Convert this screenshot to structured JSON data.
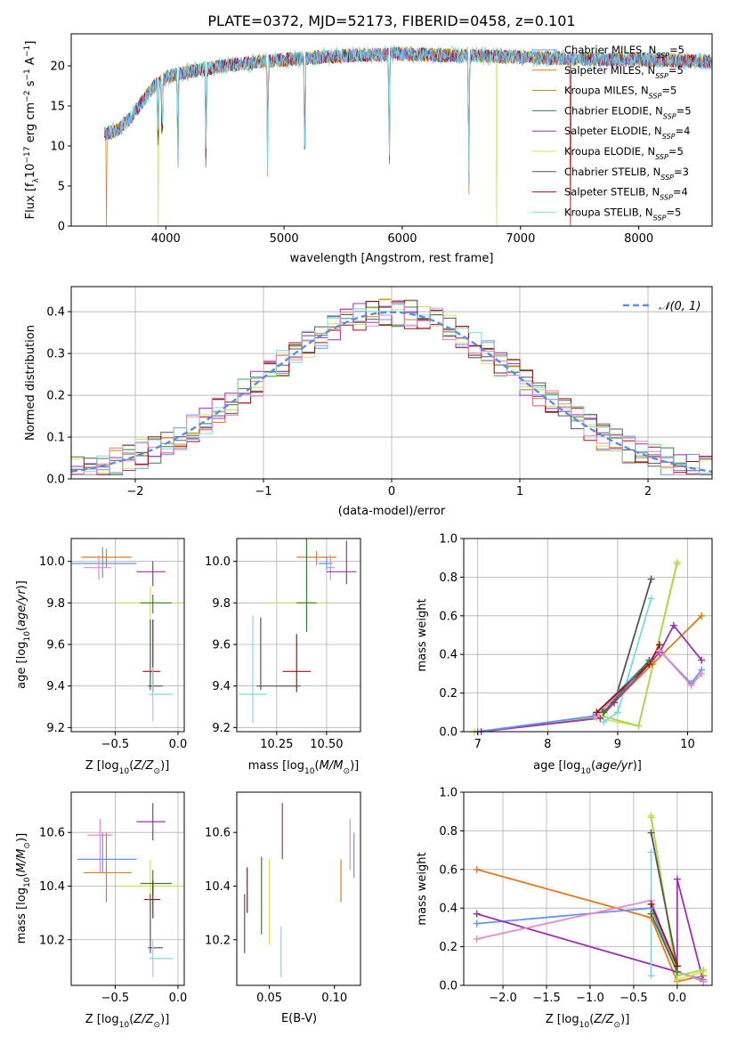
{
  "figure_title": "PLATE=0372, MJD=52173, FIBERID=0458, z=0.101",
  "colors": {
    "Chabrier MILES": "#6495ed",
    "Salpeter MILES": "#e07b1a",
    "Kroupa MILES": "#b8860b",
    "Chabrier ELODIE": "#3a7d3a",
    "Salpeter ELODIE": "#9b30b0",
    "Kroupa ELODIE": "#d4e157",
    "Chabrier STELIB": "#555555",
    "Salpeter STELIB": "#a01010",
    "Kroupa STELIB": "#7fd8e0",
    "pink": "#e88ac8",
    "lime": "#a8d850"
  },
  "chart_data": [
    {
      "type": "line",
      "name": "spectrum",
      "xlabel": "wavelength [Angstrom, rest frame]",
      "ylabel": "Flux [f_λ 10^-17 erg cm^-2 s^-1 A^-1]",
      "xlim": [
        3200,
        8620
      ],
      "ylim": [
        0,
        24
      ],
      "xticks": [
        4000,
        5000,
        6000,
        7000,
        8000
      ],
      "yticks": [
        0,
        5,
        10,
        15,
        20
      ],
      "legend_position": "right",
      "legend": [
        {
          "label": "Chabrier MILES, N_SSP=5",
          "color_key": "Chabrier MILES"
        },
        {
          "label": "Salpeter MILES, N_SSP=5",
          "color_key": "Salpeter MILES"
        },
        {
          "label": "Kroupa MILES, N_SSP=5",
          "color_key": "Kroupa MILES"
        },
        {
          "label": "Chabrier ELODIE, N_SSP=5",
          "color_key": "Chabrier ELODIE"
        },
        {
          "label": "Salpeter ELODIE, N_SSP=4",
          "color_key": "Salpeter ELODIE"
        },
        {
          "label": "Kroupa ELODIE, N_SSP=5",
          "color_key": "Kroupa ELODIE"
        },
        {
          "label": "Chabrier STELIB, N_SSP=3",
          "color_key": "Chabrier STELIB"
        },
        {
          "label": "Salpeter STELIB, N_SSP=4",
          "color_key": "Salpeter STELIB"
        },
        {
          "label": "Kroupa STELIB, N_SSP=5",
          "color_key": "Kroupa STELIB"
        }
      ],
      "continuum": [
        [
          3480,
          11.5
        ],
        [
          3600,
          12.0
        ],
        [
          3700,
          13.5
        ],
        [
          3800,
          15.5
        ],
        [
          3900,
          17.5
        ],
        [
          4000,
          18.5
        ],
        [
          4100,
          19.0
        ],
        [
          4300,
          19.5
        ],
        [
          4500,
          20.0
        ],
        [
          4800,
          20.5
        ],
        [
          5200,
          21.0
        ],
        [
          5600,
          21.3
        ],
        [
          6000,
          21.5
        ],
        [
          6400,
          21.3
        ],
        [
          6800,
          21.2
        ],
        [
          7200,
          21.0
        ],
        [
          7600,
          20.8
        ],
        [
          8000,
          20.8
        ],
        [
          8400,
          20.6
        ],
        [
          8620,
          20.5
        ]
      ],
      "absorption_lines": [
        [
          3934,
          12
        ],
        [
          3969,
          11
        ],
        [
          4102,
          15
        ],
        [
          4340,
          16
        ],
        [
          4861,
          17
        ],
        [
          5175,
          19
        ],
        [
          5890,
          19.5
        ],
        [
          6563,
          20
        ]
      ],
      "drops_to_zero": [
        [
          3500,
          "Salpeter MILES"
        ],
        [
          3935,
          "Kroupa ELODIE"
        ],
        [
          5070,
          "Chabrier STELIB"
        ],
        [
          6800,
          "Kroupa ELODIE"
        ],
        [
          7420,
          "Salpeter STELIB"
        ]
      ]
    },
    {
      "type": "line",
      "name": "residual_histograms",
      "xlabel": "(data-model)/error",
      "ylabel": "Normed distribution",
      "xlim": [
        -2.5,
        2.5
      ],
      "ylim": [
        0,
        0.46
      ],
      "xticks": [
        -2,
        -1,
        0,
        1,
        2
      ],
      "yticks": [
        0.0,
        0.1,
        0.2,
        0.3,
        0.4
      ],
      "grid": true,
      "legend_position": "top-right",
      "legend_label": "𝒩(0, 1)",
      "bin_width": 0.1,
      "histogram_series": [
        "Chabrier MILES",
        "Salpeter MILES",
        "Chabrier ELODIE",
        "Salpeter ELODIE",
        "Kroupa ELODIE",
        "Chabrier STELIB",
        "Salpeter STELIB",
        "Kroupa STELIB",
        "pink"
      ]
    },
    {
      "type": "scatter",
      "name": "age_vs_Z",
      "xlabel": "Z [log10(Z/Z☉)]",
      "ylabel": "age  [log10(age/yr)]",
      "xlim": [
        -0.85,
        0.05
      ],
      "ylim": [
        9.18,
        10.11
      ],
      "xticks": [
        -0.5,
        0.0
      ],
      "yticks": [
        9.2,
        9.4,
        9.6,
        9.8,
        10.0
      ],
      "grid": true,
      "points": [
        {
          "c": "Chabrier MILES",
          "x": -0.6,
          "y": 9.99,
          "xe": [
            0.27,
            0.27
          ],
          "ye": [
            0.07,
            0.08
          ]
        },
        {
          "c": "Salpeter MILES",
          "x": -0.57,
          "y": 10.02,
          "xe": [
            0.2,
            0.2
          ],
          "ye": [
            0.05,
            0.04
          ]
        },
        {
          "c": "pink",
          "x": -0.63,
          "y": 9.97,
          "xe": [
            0.12,
            0.1
          ],
          "ye": [
            0.06,
            0.06
          ]
        },
        {
          "c": "Salpeter ELODIE",
          "x": -0.2,
          "y": 9.95,
          "xe": [
            0.13,
            0.1
          ],
          "ye": [
            0.07,
            0.05
          ]
        },
        {
          "c": "Kroupa ELODIE",
          "x": -0.22,
          "y": 9.8,
          "xe": [
            0.26,
            0.25
          ],
          "ye": [
            0.1,
            0.08
          ]
        },
        {
          "c": "Chabrier ELODIE",
          "x": -0.2,
          "y": 9.8,
          "xe": [
            0.1,
            0.15
          ],
          "ye": [
            0.05,
            0.04
          ]
        },
        {
          "c": "Salpeter STELIB",
          "x": -0.2,
          "y": 9.47,
          "xe": [
            0.08,
            0.06
          ],
          "ye": [
            0.1,
            0.25
          ]
        },
        {
          "c": "Chabrier STELIB",
          "x": -0.22,
          "y": 9.4,
          "xe": [
            0.02,
            0.1
          ],
          "ye": [
            0.02,
            0.32
          ]
        },
        {
          "c": "Kroupa STELIB",
          "x": -0.2,
          "y": 9.36,
          "xe": [
            0.03,
            0.16
          ],
          "ye": [
            0.13,
            0.13
          ]
        }
      ]
    },
    {
      "type": "scatter",
      "name": "age_vs_mass",
      "xlabel": "mass [log10(M/M☉)]",
      "ylabel": "",
      "xlim": [
        10.05,
        10.67
      ],
      "ylim": [
        9.18,
        10.11
      ],
      "xticks": [
        10.25,
        10.5
      ],
      "yticks": [
        9.2,
        9.4,
        9.6,
        9.8,
        10.0
      ],
      "grid": true,
      "points": [
        {
          "c": "Salpeter MILES",
          "x": 10.45,
          "y": 10.02,
          "xe": [
            0.1,
            0.1
          ],
          "ye": [
            0.04,
            0.03
          ]
        },
        {
          "c": "Chabrier MILES",
          "x": 10.5,
          "y": 9.99,
          "xe": [
            0.04,
            0.03
          ],
          "ye": [
            0.03,
            0.03
          ]
        },
        {
          "c": "pink",
          "x": 10.52,
          "y": 9.97,
          "xe": [
            0.02,
            0.02
          ],
          "ye": [
            0.06,
            0.06
          ]
        },
        {
          "c": "Salpeter ELODIE",
          "x": 10.6,
          "y": 9.95,
          "xe": [
            0.1,
            0.05
          ],
          "ye": [
            0.06,
            0.15
          ]
        },
        {
          "c": "Kroupa ELODIE",
          "x": 10.4,
          "y": 9.8,
          "xe": [
            0.2,
            0.1
          ],
          "ye": [
            0.12,
            0.42
          ]
        },
        {
          "c": "Chabrier ELODIE",
          "x": 10.4,
          "y": 9.8,
          "xe": [
            0.05,
            0.05
          ],
          "ye": [
            0.14,
            0.4
          ]
        },
        {
          "c": "Salpeter STELIB",
          "x": 10.35,
          "y": 9.47,
          "xe": [
            0.07,
            0.07
          ],
          "ye": [
            0.1,
            0.18
          ]
        },
        {
          "c": "Chabrier STELIB",
          "x": 10.17,
          "y": 9.4,
          "xe": [
            0.02,
            0.2
          ],
          "ye": [
            0.02,
            0.33
          ]
        },
        {
          "c": "Kroupa STELIB",
          "x": 10.13,
          "y": 9.36,
          "xe": [
            0.07,
            0.07
          ],
          "ye": [
            0.14,
            0.38
          ]
        }
      ]
    },
    {
      "type": "line",
      "name": "mass_weight_vs_age",
      "xlabel": "age  [log10(age/yr)]",
      "ylabel": "mass weight",
      "xlim": [
        6.8,
        10.35
      ],
      "ylim": [
        0,
        1.0
      ],
      "xticks": [
        7,
        8,
        9,
        10
      ],
      "yticks": [
        0.0,
        0.2,
        0.4,
        0.6,
        0.8,
        1.0
      ],
      "grid": true,
      "series": [
        {
          "c": "Chabrier STELIB",
          "x": [
            8.78,
            8.95,
            9.48
          ],
          "y": [
            0.1,
            0.15,
            0.79
          ]
        },
        {
          "c": "Kroupa ELODIE",
          "x": [
            6.95,
            8.7,
            9.3,
            9.85
          ],
          "y": [
            0.0,
            0.07,
            0.03,
            0.88
          ]
        },
        {
          "c": "lime",
          "x": [
            7.0,
            8.78,
            9.3,
            9.85
          ],
          "y": [
            0.0,
            0.08,
            0.03,
            0.87
          ]
        },
        {
          "c": "Kroupa STELIB",
          "x": [
            8.8,
            9.0,
            9.48
          ],
          "y": [
            0.05,
            0.1,
            0.69
          ]
        },
        {
          "c": "Salpeter MILES",
          "x": [
            8.8,
            9.5,
            10.2
          ],
          "y": [
            0.1,
            0.35,
            0.6
          ]
        },
        {
          "c": "Salpeter ELODIE",
          "x": [
            7.05,
            8.75,
            9.6,
            9.8,
            10.2
          ],
          "y": [
            0.0,
            0.07,
            0.41,
            0.55,
            0.37
          ]
        },
        {
          "c": "Chabrier MILES",
          "x": [
            7.0,
            8.65,
            9.6,
            10.05,
            10.2
          ],
          "y": [
            0.0,
            0.08,
            0.42,
            0.25,
            0.32
          ]
        },
        {
          "c": "pink",
          "x": [
            8.7,
            9.6,
            10.05,
            10.2
          ],
          "y": [
            0.08,
            0.42,
            0.24,
            0.3
          ]
        },
        {
          "c": "Salpeter STELIB",
          "x": [
            8.7,
            9.45,
            9.6
          ],
          "y": [
            0.1,
            0.35,
            0.45
          ]
        },
        {
          "c": "Chabrier ELODIE",
          "x": [
            8.8,
            9.45
          ],
          "y": [
            0.1,
            0.37
          ]
        }
      ]
    },
    {
      "type": "scatter",
      "name": "mass_vs_Z",
      "xlabel": "Z [log10(Z/Z☉)]",
      "ylabel": "mass [log10(M/M☉)]",
      "xlim": [
        -0.85,
        0.05
      ],
      "ylim": [
        10.03,
        10.75
      ],
      "xticks": [
        -0.5,
        0.0
      ],
      "yticks": [
        10.2,
        10.4,
        10.6
      ],
      "grid": true,
      "points": [
        {
          "c": "Salpeter ELODIE",
          "x": -0.2,
          "y": 10.64,
          "xe": [
            0.13,
            0.1
          ],
          "ye": [
            0.07,
            0.07
          ]
        },
        {
          "c": "pink",
          "x": -0.62,
          "y": 10.59,
          "xe": [
            0.1,
            0.1
          ],
          "ye": [
            0.14,
            0.06
          ]
        },
        {
          "c": "Chabrier MILES",
          "x": -0.6,
          "y": 10.5,
          "xe": [
            0.2,
            0.27
          ],
          "ye": [
            0.05,
            0.1
          ]
        },
        {
          "c": "Salpeter MILES",
          "x": -0.57,
          "y": 10.45,
          "xe": [
            0.18,
            0.2
          ],
          "ye": [
            0.11,
            0.15
          ]
        },
        {
          "c": "Kroupa ELODIE",
          "x": -0.22,
          "y": 10.4,
          "xe": [
            0.25,
            0.25
          ],
          "ye": [
            0.1,
            0.1
          ]
        },
        {
          "c": "Chabrier ELODIE",
          "x": -0.2,
          "y": 10.41,
          "xe": [
            0.1,
            0.15
          ],
          "ye": [
            0.05,
            0.05
          ]
        },
        {
          "c": "Salpeter STELIB",
          "x": -0.2,
          "y": 10.35,
          "xe": [
            0.07,
            0.06
          ],
          "ye": [
            0.07,
            0.07
          ]
        },
        {
          "c": "Chabrier STELIB",
          "x": -0.22,
          "y": 10.17,
          "xe": [
            0.02,
            0.1
          ],
          "ye": [
            0.02,
            0.2
          ]
        },
        {
          "c": "Kroupa STELIB",
          "x": -0.2,
          "y": 10.13,
          "xe": [
            0.03,
            0.16
          ],
          "ye": [
            0.07,
            0.07
          ]
        }
      ]
    },
    {
      "type": "scatter",
      "name": "mass_vs_ebv",
      "xlabel": "E(B-V)",
      "ylabel": "",
      "xlim": [
        0.025,
        0.12
      ],
      "ylim": [
        10.03,
        10.75
      ],
      "xticks": [
        0.05,
        0.1
      ],
      "yticks": [
        10.2,
        10.4,
        10.6
      ],
      "grid": false,
      "points": [
        {
          "c": "Chabrier STELIB",
          "x": 0.031,
          "y1": 10.15,
          "y2": 10.37
        },
        {
          "c": "Salpeter STELIB",
          "x": 0.033,
          "y1": 10.3,
          "y2": 10.47
        },
        {
          "c": "Chabrier ELODIE",
          "x": 0.044,
          "y1": 10.22,
          "y2": 10.51
        },
        {
          "c": "Kroupa ELODIE",
          "x": 0.05,
          "y1": 10.18,
          "y2": 10.5
        },
        {
          "c": "Kroupa STELIB",
          "x": 0.059,
          "y1": 10.06,
          "y2": 10.25
        },
        {
          "c": "Salpeter ELODIE",
          "x": 0.06,
          "y1": 10.5,
          "y2": 10.71
        },
        {
          "c": "Salpeter MILES",
          "x": 0.105,
          "y1": 10.34,
          "y2": 10.5
        },
        {
          "c": "pink",
          "x": 0.112,
          "y1": 10.46,
          "y2": 10.65
        },
        {
          "c": "Chabrier MILES",
          "x": 0.115,
          "y1": 10.43,
          "y2": 10.6
        }
      ]
    },
    {
      "type": "line",
      "name": "mass_weight_vs_Z",
      "xlabel": "Z [log10(Z/Z☉)]",
      "ylabel": "mass weight",
      "xlim": [
        -2.45,
        0.4
      ],
      "ylim": [
        0,
        1.0
      ],
      "xticks": [
        -2.0,
        -1.5,
        -1.0,
        -0.5,
        0.0
      ],
      "yticks": [
        0.0,
        0.2,
        0.4,
        0.6,
        0.8,
        1.0
      ],
      "grid": true,
      "series": [
        {
          "c": "Salpeter MILES",
          "x": [
            -2.3,
            -0.3,
            0.0,
            0.3
          ],
          "y": [
            0.6,
            0.35,
            0.02,
            0.05
          ]
        },
        {
          "c": "Chabrier MILES",
          "x": [
            -2.3,
            -0.3,
            0.0,
            0.3
          ],
          "y": [
            0.32,
            0.4,
            0.07,
            0.03
          ]
        },
        {
          "c": "Salpeter ELODIE",
          "x": [
            -2.3,
            0.0,
            0.0,
            0.3
          ],
          "y": [
            0.37,
            0.07,
            0.55,
            0.02
          ]
        },
        {
          "c": "pink",
          "x": [
            -2.3,
            -0.3,
            0.0,
            0.3
          ],
          "y": [
            0.24,
            0.44,
            0.07,
            0.02
          ]
        },
        {
          "c": "Kroupa ELODIE",
          "x": [
            -0.3,
            0.0,
            0.3
          ],
          "y": [
            0.88,
            0.03,
            0.07
          ]
        },
        {
          "c": "lime",
          "x": [
            -0.3,
            0.0,
            0.3
          ],
          "y": [
            0.87,
            0.05,
            0.08
          ]
        },
        {
          "c": "Chabrier STELIB",
          "x": [
            -0.3,
            0.0
          ],
          "y": [
            0.79,
            0.1
          ]
        },
        {
          "c": "Kroupa STELIB",
          "x": [
            -0.3,
            -0.3
          ],
          "y": [
            0.05,
            0.69
          ]
        },
        {
          "c": "Salpeter STELIB",
          "x": [
            -0.3,
            0.0
          ],
          "y": [
            0.42,
            0.1
          ]
        },
        {
          "c": "Chabrier ELODIE",
          "x": [
            -0.3,
            0.0
          ],
          "y": [
            0.37,
            0.07
          ]
        }
      ]
    }
  ]
}
